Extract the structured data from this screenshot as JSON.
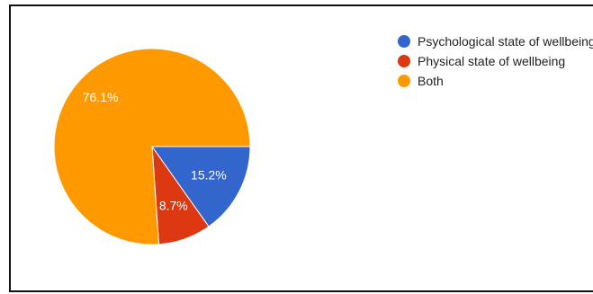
{
  "chart_data": {
    "type": "pie",
    "start_angle_deg": 90,
    "direction": "clockwise",
    "legend_position": "right",
    "slices": [
      {
        "label": "Psychological state of wellbeing",
        "value": 15.2,
        "display": "15.2%",
        "color": "#3366cc"
      },
      {
        "label": "Physical state of wellbeing",
        "value": 8.7,
        "display": "8.7%",
        "color": "#dc3912"
      },
      {
        "label": "Both",
        "value": 76.1,
        "display": "76.1%",
        "color": "#ff9900"
      }
    ]
  }
}
